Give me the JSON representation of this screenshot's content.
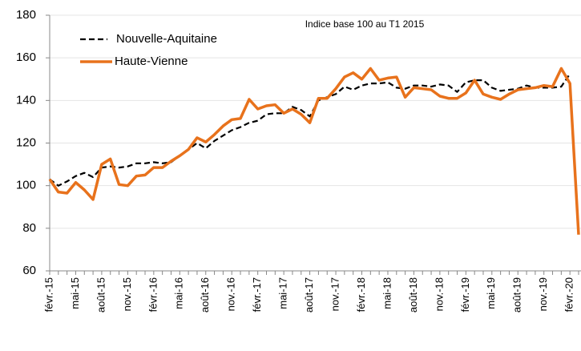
{
  "chart_data": {
    "type": "line",
    "annotation": "Indice base 100 au T1 2015",
    "categories": [
      "févr.-15",
      null,
      null,
      "mai-15",
      null,
      null,
      "août-15",
      null,
      null,
      "nov.-15",
      null,
      null,
      "févr.-16",
      null,
      null,
      "mai-16",
      null,
      null,
      "août-16",
      null,
      null,
      "nov.-16",
      null,
      null,
      "févr.-17",
      null,
      null,
      "mai-17",
      null,
      null,
      "août-17",
      null,
      null,
      "nov.-17",
      null,
      null,
      "févr.-18",
      null,
      null,
      "mai-18",
      null,
      null,
      "août-18",
      null,
      null,
      "nov.-18",
      null,
      null,
      "févr.-19",
      null,
      null,
      "mai-19",
      null,
      null,
      "août-19",
      null,
      null,
      "nov.-19",
      null,
      null,
      "févr.-20",
      null
    ],
    "series": [
      {
        "name": "Nouvelle-Aquitaine",
        "color": "#000000",
        "dash": true,
        "values": [
          103,
          100,
          102,
          104.5,
          106,
          104,
          108.5,
          109,
          108.5,
          109,
          110.5,
          110.5,
          111,
          110.5,
          111,
          114,
          117,
          120,
          117.5,
          121,
          123.5,
          126,
          127.5,
          129.5,
          130.5,
          133.5,
          134,
          134,
          137,
          135.5,
          132.5,
          140,
          141.5,
          143,
          146.5,
          145,
          147,
          148,
          148,
          148.5,
          146,
          145.5,
          147,
          147,
          146.5,
          147.5,
          147,
          144,
          148.5,
          149.5,
          149.5,
          146,
          144.5,
          145,
          145.5,
          147,
          146,
          146,
          146,
          146.5,
          152.5,
          null
        ]
      },
      {
        "name": "Haute-Vienne",
        "color": "#e8721c",
        "dash": false,
        "values": [
          103,
          97,
          96.5,
          101.5,
          98,
          93.5,
          110,
          112.5,
          100.5,
          100,
          104.5,
          105,
          108.5,
          108.5,
          111.5,
          114,
          117,
          122.5,
          120.5,
          124,
          128,
          131,
          131.5,
          140.5,
          136,
          137.5,
          138,
          134,
          136,
          133.5,
          129.5,
          141,
          141,
          145.5,
          151,
          153,
          150,
          155,
          149.5,
          150.5,
          151,
          141.5,
          146,
          145.5,
          145,
          142,
          141,
          141,
          143.5,
          149.5,
          143,
          141.5,
          140.5,
          143,
          145,
          145.5,
          146,
          147,
          146.5,
          155,
          148,
          77
        ]
      }
    ],
    "ylim": [
      60,
      180
    ],
    "yticks": [
      60,
      80,
      100,
      120,
      140,
      160,
      180
    ],
    "grid": true,
    "legend": "top-left"
  }
}
